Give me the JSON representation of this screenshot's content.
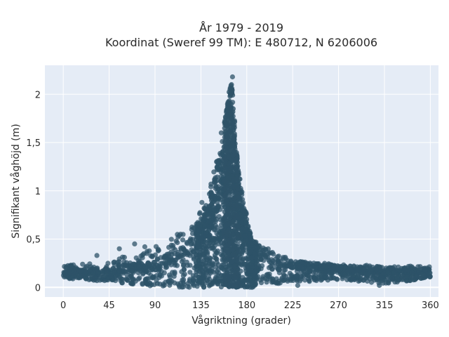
{
  "chart_data": {
    "type": "scatter",
    "title": "År 1979 - 2019",
    "subtitle": "Koordinat (Sweref 99 TM): E 480712, N 6206006",
    "xlabel": "Vågriktning (grader)",
    "ylabel": "Signifikant våghöjd (m)",
    "xlim": [
      -18,
      368
    ],
    "ylim": [
      -0.1,
      2.3
    ],
    "xticks": [
      0,
      45,
      90,
      135,
      180,
      225,
      270,
      315,
      360
    ],
    "xtick_labels": [
      "0",
      "45",
      "90",
      "135",
      "180",
      "225",
      "270",
      "315",
      "360"
    ],
    "yticks": [
      0,
      0.5,
      1,
      1.5,
      2
    ],
    "ytick_labels": [
      "0",
      "0,5",
      "1",
      "1,5",
      "2"
    ],
    "grid": true,
    "plot_background": "#e5ecf6",
    "marker_color": "#2e5368",
    "series": [
      {
        "points_note_free": true,
        "envelope": [
          {
            "x": 0,
            "y": 0.15,
            "low": 0.09,
            "high": 0.22
          },
          {
            "x": 45,
            "y": 0.15,
            "low": 0.06,
            "high": 0.28
          },
          {
            "x": 90,
            "y": 0.18,
            "low": 0.01,
            "high": 0.42
          },
          {
            "x": 120,
            "y": 0.28,
            "low": 0.0,
            "high": 0.6
          },
          {
            "x": 140,
            "y": 0.5,
            "low": 0.0,
            "high": 0.85
          },
          {
            "x": 155,
            "y": 0.9,
            "low": 0.0,
            "high": 1.55
          },
          {
            "x": 165,
            "y": 1.2,
            "low": 0.0,
            "high": 2.2
          },
          {
            "x": 172,
            "y": 0.7,
            "low": 0.0,
            "high": 1.2
          },
          {
            "x": 185,
            "y": 0.3,
            "low": 0.0,
            "high": 0.5
          },
          {
            "x": 225,
            "y": 0.2,
            "low": 0.05,
            "high": 0.27
          },
          {
            "x": 270,
            "y": 0.17,
            "low": 0.08,
            "high": 0.24
          },
          {
            "x": 315,
            "y": 0.15,
            "low": 0.04,
            "high": 0.22
          },
          {
            "x": 360,
            "y": 0.15,
            "low": 0.09,
            "high": 0.22
          }
        ],
        "outliers": [
          {
            "x": 8,
            "y": 0.22
          },
          {
            "x": 33,
            "y": 0.33
          },
          {
            "x": 55,
            "y": 0.4
          },
          {
            "x": 70,
            "y": 0.45
          },
          {
            "x": 80,
            "y": 0.42
          },
          {
            "x": 115,
            "y": 0.55
          },
          {
            "x": 126,
            "y": 0.6
          },
          {
            "x": 136,
            "y": 0.88
          },
          {
            "x": 155,
            "y": 1.6
          },
          {
            "x": 166,
            "y": 2.18
          },
          {
            "x": 165,
            "y": 2.1
          },
          {
            "x": 183,
            "y": 0.55
          },
          {
            "x": 185,
            "y": 0.0
          },
          {
            "x": 230,
            "y": 0.02
          },
          {
            "x": 310,
            "y": 0.02
          }
        ]
      }
    ]
  }
}
